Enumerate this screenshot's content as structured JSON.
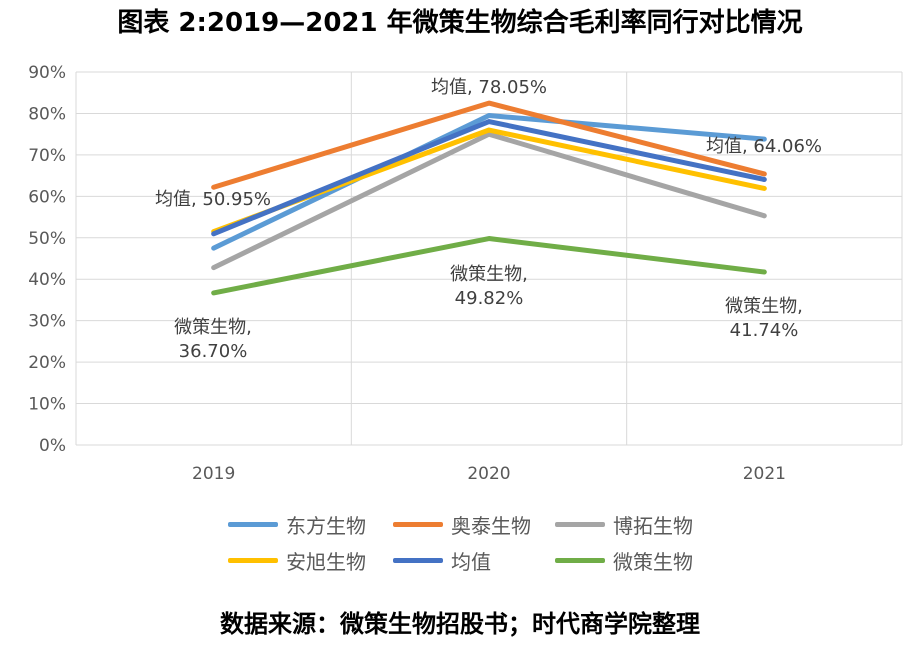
{
  "title": "图表 2:2019—2021 年微策生物综合毛利率同行对比情况",
  "source": "数据来源：微策生物招股书；时代商学院整理",
  "chart_data": {
    "type": "line",
    "categories": [
      "2019",
      "2020",
      "2021"
    ],
    "ylim": [
      0,
      0.9
    ],
    "yticks": [
      "0%",
      "10%",
      "20%",
      "30%",
      "40%",
      "50%",
      "60%",
      "70%",
      "80%",
      "90%"
    ],
    "grid": true,
    "legend_position": "bottom",
    "series": [
      {
        "name": "东方生物",
        "color": "#5B9BD5",
        "values": [
          0.475,
          0.795,
          0.738
        ]
      },
      {
        "name": "奥泰生物",
        "color": "#ED7D31",
        "values": [
          0.622,
          0.825,
          0.654
        ]
      },
      {
        "name": "博拓生物",
        "color": "#A5A5A5",
        "values": [
          0.428,
          0.75,
          0.553
        ]
      },
      {
        "name": "安旭生物",
        "color": "#FFC000",
        "values": [
          0.515,
          0.76,
          0.619
        ]
      },
      {
        "name": "均值",
        "color": "#4472C4",
        "values": [
          0.5095,
          0.7805,
          0.6406
        ]
      },
      {
        "name": "微策生物",
        "color": "#70AD47",
        "values": [
          0.367,
          0.4982,
          0.4174
        ]
      }
    ],
    "annotations": [
      {
        "lines": [
          "均值, 50.95%"
        ]
      },
      {
        "lines": [
          "均值, 78.05%"
        ]
      },
      {
        "lines": [
          "均值, 64.06%"
        ]
      },
      {
        "lines": [
          "微策生物,",
          "36.70%"
        ]
      },
      {
        "lines": [
          "微策生物,",
          "49.82%"
        ]
      },
      {
        "lines": [
          "微策生物,",
          "41.74%"
        ]
      }
    ]
  }
}
